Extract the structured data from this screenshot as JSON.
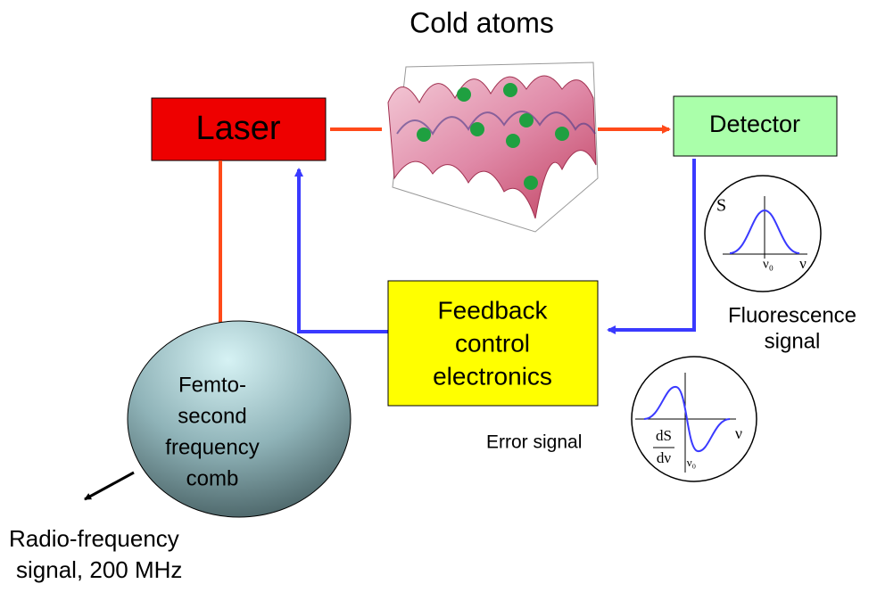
{
  "title": "Cold atoms",
  "nodes": [
    {
      "label": "Laser"
    },
    {
      "label": "Detector"
    },
    {
      "lines": [
        "Feedback",
        "control",
        "electronics"
      ]
    },
    {
      "lines": [
        "Femto-",
        "second",
        "frequency",
        "comb"
      ]
    }
  ],
  "output": {
    "lines": [
      "Radio-frequency",
      "signal, 200 MHz"
    ]
  },
  "fluorescence": {
    "lines": [
      "Fluorescence",
      "signal"
    ],
    "axis_y": "S",
    "center": "ν₀",
    "axis_x": "ν"
  },
  "error": {
    "label": "Error signal",
    "numerator": "dS",
    "denominator": "dν",
    "center": "ν₀",
    "axis_x": "ν"
  }
}
